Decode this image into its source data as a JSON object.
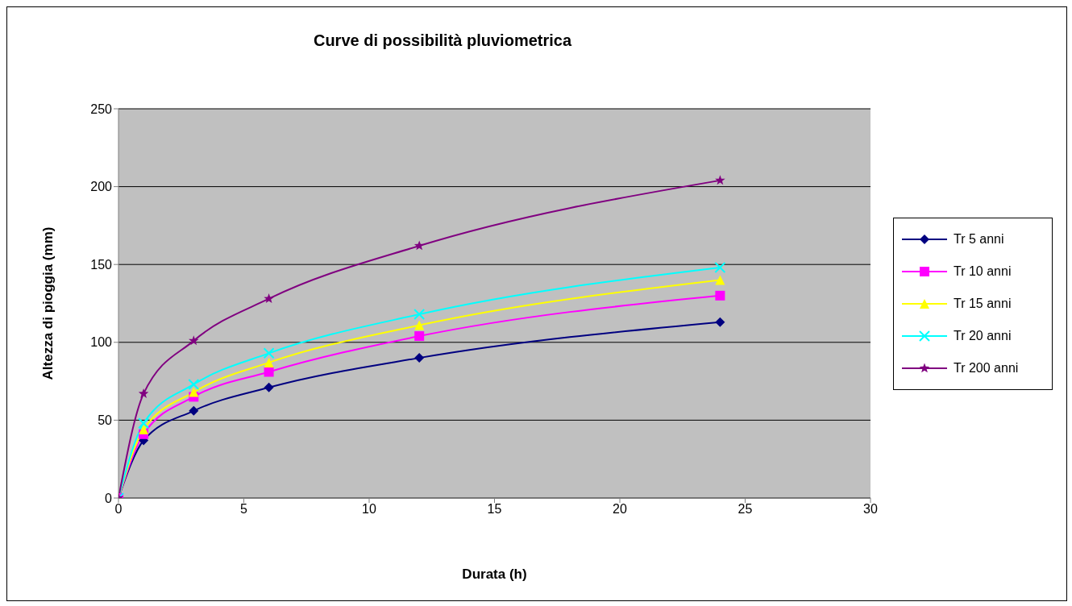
{
  "chart_data": {
    "type": "line",
    "title": "Curve di possibilità pluviometrica",
    "xlabel": "Durata (h)",
    "ylabel": "Altezza di pioggia (mm)",
    "x": [
      0,
      1,
      3,
      6,
      12,
      24
    ],
    "series": [
      {
        "name": "Tr 5 anni",
        "color": "#000080",
        "marker": "diamond",
        "values": [
          0,
          37,
          56,
          71,
          90,
          113
        ]
      },
      {
        "name": "Tr 10 anni",
        "color": "#ff00ff",
        "marker": "square",
        "values": [
          0,
          41,
          65,
          81,
          104,
          130
        ]
      },
      {
        "name": "Tr 15 anni",
        "color": "#ffff00",
        "marker": "triangle",
        "values": [
          0,
          44,
          68,
          87,
          111,
          140
        ]
      },
      {
        "name": "Tr 20 anni",
        "color": "#00ffff",
        "marker": "cross",
        "values": [
          0,
          48,
          73,
          93,
          118,
          148
        ]
      },
      {
        "name": "Tr 200 anni",
        "color": "#800080",
        "marker": "star",
        "values": [
          0,
          67,
          101,
          128,
          162,
          204
        ]
      }
    ],
    "xlim": [
      0,
      30
    ],
    "xticks": [
      0,
      5,
      10,
      15,
      20,
      25,
      30
    ],
    "ylim": [
      0,
      250
    ],
    "yticks": [
      0,
      50,
      100,
      150,
      200,
      250
    ],
    "grid": "y",
    "legend": "right",
    "line_style": "solid"
  }
}
